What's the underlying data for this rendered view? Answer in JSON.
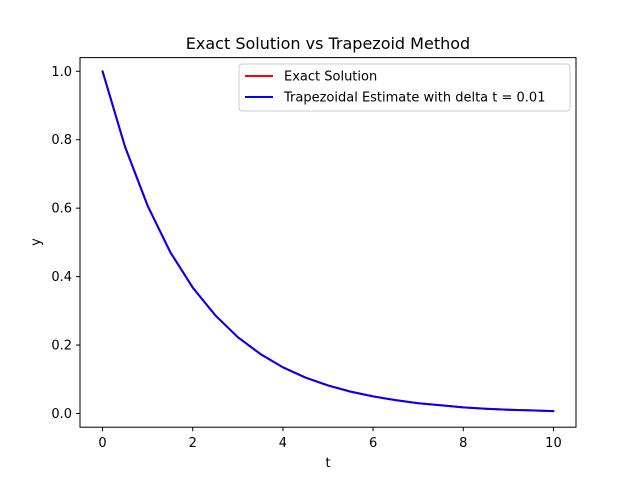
{
  "chart_data": {
    "type": "line",
    "title": "Exact Solution vs Trapezoid Method",
    "xlabel": "t",
    "ylabel": "y",
    "xlim": [
      -0.5,
      10.5
    ],
    "ylim": [
      -0.04,
      1.04
    ],
    "x_ticks": [
      0,
      2,
      4,
      6,
      8,
      10
    ],
    "y_ticks": [
      0.0,
      0.2,
      0.4,
      0.6,
      0.8,
      1.0
    ],
    "x_tick_labels": [
      "0",
      "2",
      "4",
      "6",
      "8",
      "10"
    ],
    "y_tick_labels": [
      "0.0",
      "0.2",
      "0.4",
      "0.6",
      "0.8",
      "1.0"
    ],
    "grid": false,
    "legend_position": "top-right",
    "x": [
      0,
      0.5,
      1,
      1.5,
      2,
      2.5,
      3,
      3.5,
      4,
      4.5,
      5,
      5.5,
      6,
      6.5,
      7,
      7.5,
      8,
      8.5,
      9,
      9.5,
      10
    ],
    "series": [
      {
        "name": "Exact Solution",
        "color": "#ff0000",
        "values": [
          1.0,
          0.779,
          0.607,
          0.472,
          0.368,
          0.287,
          0.223,
          0.174,
          0.135,
          0.105,
          0.082,
          0.064,
          0.05,
          0.039,
          0.03,
          0.024,
          0.018,
          0.014,
          0.011,
          0.009,
          0.007
        ]
      },
      {
        "name": "Trapezoidal Estimate with delta t = 0.01",
        "color": "#0000ff",
        "values": [
          1.0,
          0.779,
          0.607,
          0.472,
          0.368,
          0.287,
          0.223,
          0.174,
          0.135,
          0.105,
          0.082,
          0.064,
          0.05,
          0.039,
          0.03,
          0.024,
          0.018,
          0.014,
          0.011,
          0.009,
          0.007
        ]
      }
    ]
  }
}
